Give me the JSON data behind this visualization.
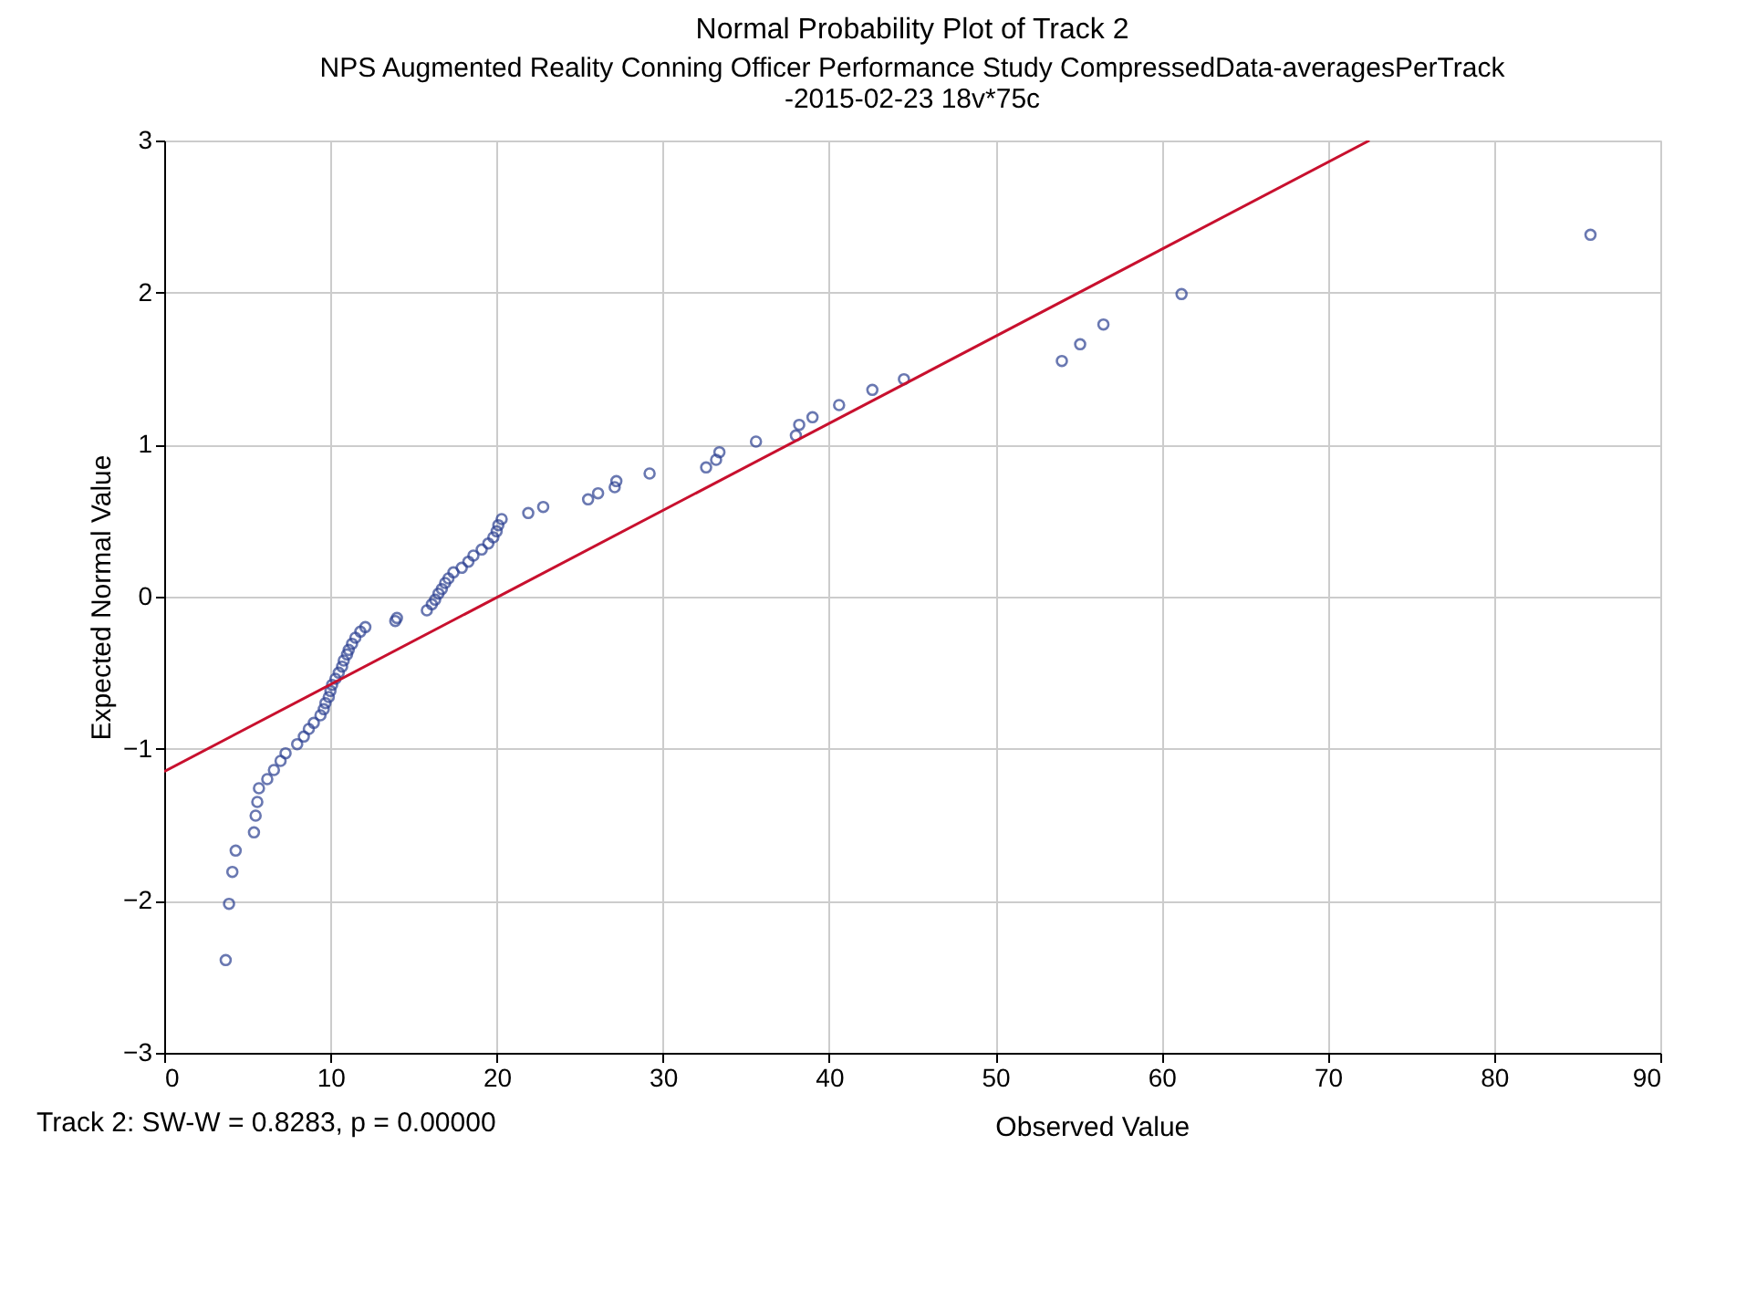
{
  "chart_data": {
    "type": "scatter",
    "title": "Normal Probability Plot of Track 2",
    "subtitle": "NPS Augmented Reality Conning Officer Performance Study CompressedData-averagesPerTrack\n-2015-02-23 18v*75c",
    "xlabel": "Observed Value",
    "ylabel": "Expected Normal Value",
    "annotations": [
      "Track 2:  SW-W = 0.8283, p = 0.00000"
    ],
    "xlim": [
      0,
      90
    ],
    "xticks": [
      0,
      10,
      20,
      30,
      40,
      50,
      60,
      70,
      80,
      90
    ],
    "ylim": [
      -3,
      3
    ],
    "yticks": [
      -3,
      -2,
      -1,
      0,
      1,
      2,
      3
    ],
    "grid": true,
    "marker": "circle",
    "series": [
      {
        "color": "#2b3f91",
        "x": [
          3.7,
          3.9,
          4.1,
          4.3,
          5.4,
          5.5,
          5.6,
          5.7,
          6.2,
          6.6,
          7.0,
          7.3,
          8.0,
          8.4,
          8.7,
          9.0,
          9.4,
          9.6,
          9.7,
          9.9,
          10.0,
          10.1,
          10.3,
          10.5,
          10.7,
          10.8,
          11.0,
          11.1,
          11.3,
          11.5,
          11.8,
          12.1,
          13.9,
          14.0,
          15.8,
          16.1,
          16.3,
          16.5,
          16.7,
          16.9,
          17.1,
          17.4,
          17.9,
          18.3,
          18.6,
          19.1,
          19.5,
          19.8,
          20.0,
          20.1,
          20.3,
          21.9,
          22.8,
          25.5,
          26.1,
          27.1,
          27.2,
          29.2,
          32.6,
          33.2,
          33.4,
          35.6,
          38.0,
          38.2,
          39.0,
          40.6,
          42.6,
          44.5,
          54.0,
          55.1,
          56.5,
          61.2,
          85.8
        ],
        "values": [
          -2.39,
          -2.02,
          -1.81,
          -1.67,
          -1.55,
          -1.44,
          -1.35,
          -1.26,
          -1.2,
          -1.14,
          -1.08,
          -1.03,
          -0.97,
          -0.92,
          -0.87,
          -0.83,
          -0.78,
          -0.74,
          -0.7,
          -0.66,
          -0.62,
          -0.58,
          -0.54,
          -0.5,
          -0.46,
          -0.42,
          -0.38,
          -0.35,
          -0.31,
          -0.27,
          -0.23,
          -0.2,
          -0.16,
          -0.14,
          -0.09,
          -0.05,
          -0.02,
          0.02,
          0.05,
          0.09,
          0.12,
          0.16,
          0.19,
          0.23,
          0.27,
          0.31,
          0.35,
          0.39,
          0.43,
          0.47,
          0.51,
          0.55,
          0.59,
          0.64,
          0.68,
          0.72,
          0.76,
          0.81,
          0.85,
          0.9,
          0.95,
          1.02,
          1.06,
          1.13,
          1.18,
          1.26,
          1.36,
          1.43,
          1.55,
          1.66,
          1.79,
          1.99,
          2.38
        ]
      },
      {
        "type": "line",
        "color": "#c8102e",
        "marker": "none",
        "x": [
          0,
          72.5
        ],
        "values": [
          -1.15,
          3
        ]
      }
    ]
  }
}
